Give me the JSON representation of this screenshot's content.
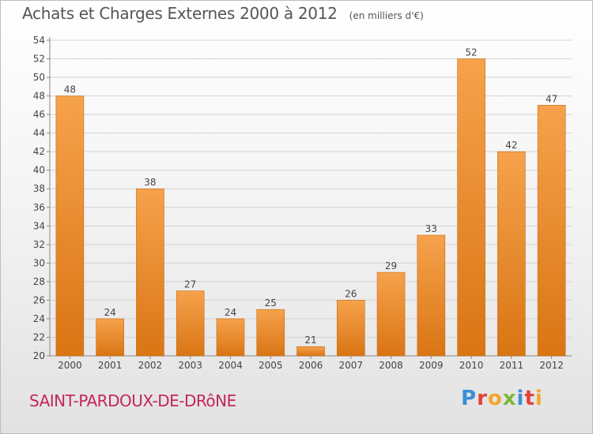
{
  "title": "Achats et Charges Externes 2000 à 2012",
  "unit": "(en milliers d'€)",
  "commune": "SAINT-PARDOUX-DE-DRôNE",
  "logo": {
    "letters": [
      {
        "ch": "P",
        "color": "#3a8fd6"
      },
      {
        "ch": "r",
        "color": "#e0433a"
      },
      {
        "ch": "o",
        "color": "#f2a62a"
      },
      {
        "ch": "x",
        "color": "#7cb83a"
      },
      {
        "ch": "i",
        "color": "#3a8fd6"
      },
      {
        "ch": "t",
        "color": "#e0433a"
      },
      {
        "ch": "i",
        "color": "#f2a62a"
      }
    ]
  },
  "colors": {
    "bar_top": "#f6a24c",
    "bar_bottom": "#d97514",
    "bar_edge": "#c86a12",
    "grid": "#d2d2d2"
  },
  "chart_data": {
    "type": "bar",
    "categories": [
      "2000",
      "2001",
      "2002",
      "2003",
      "2004",
      "2005",
      "2006",
      "2007",
      "2008",
      "2009",
      "2010",
      "2011",
      "2012"
    ],
    "values": [
      48,
      24,
      38,
      27,
      24,
      25,
      21,
      26,
      29,
      33,
      52,
      42,
      47
    ],
    "ylim": [
      20,
      54
    ],
    "yticks": [
      20,
      22,
      24,
      26,
      28,
      30,
      32,
      34,
      36,
      38,
      40,
      42,
      44,
      46,
      48,
      50,
      52,
      54
    ],
    "grid": true,
    "legend": "none",
    "data_labels": true
  }
}
